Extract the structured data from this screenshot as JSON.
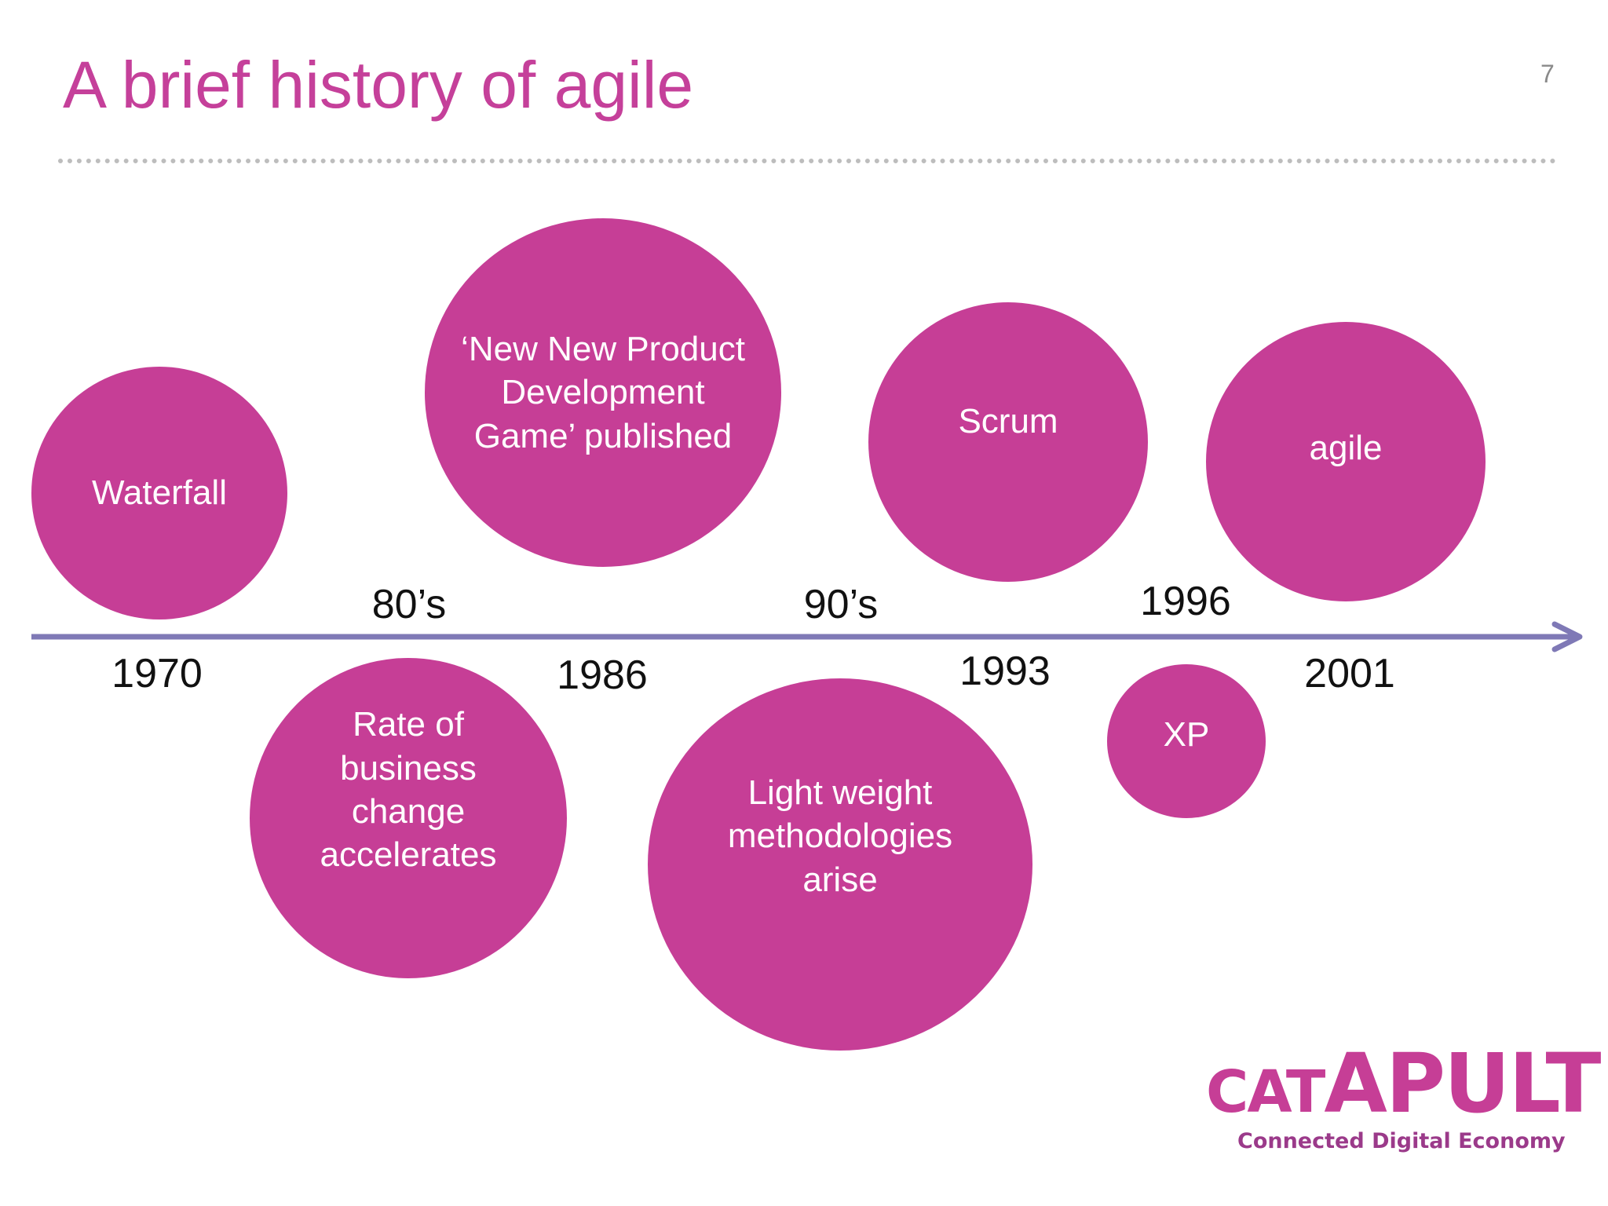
{
  "slide": {
    "title": "A brief history of agile",
    "number": "7"
  },
  "timeline": {
    "axis_color": "#7f79b6",
    "circle_color": "#c63e96",
    "events": [
      {
        "label": "Waterfall"
      },
      {
        "label": "‘New New Product Development Game’ published"
      },
      {
        "label": "Scrum"
      },
      {
        "label": "agile"
      },
      {
        "label": "Rate of business change accelerates"
      },
      {
        "label": "Light weight methodologies arise"
      },
      {
        "label": "XP"
      }
    ],
    "years": [
      "1970",
      "1986",
      "1993",
      "2001",
      "1996"
    ],
    "periods": [
      "80’s",
      "90’s"
    ]
  },
  "logo": {
    "wordmark": "CATAPULT",
    "tagline": "Connected Digital Economy"
  }
}
